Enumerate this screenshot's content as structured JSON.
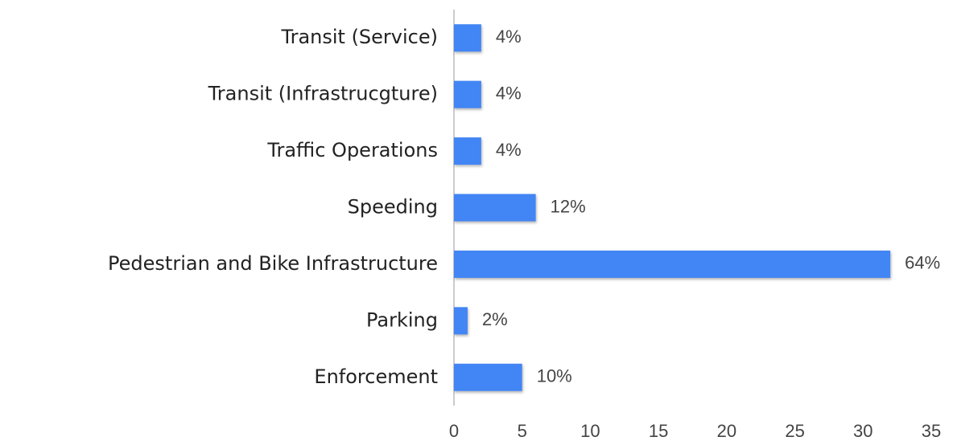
{
  "chart_data": {
    "type": "bar",
    "orientation": "horizontal",
    "categories": [
      "Transit (Service)",
      "Transit (Infrastrucgture)",
      "Traffic Operations",
      "Speeding",
      "Pedestrian and Bike Infrastructure",
      "Parking",
      "Enforcement"
    ],
    "values": [
      2,
      2,
      2,
      6,
      32,
      1,
      5
    ],
    "value_labels": [
      "4%",
      "4%",
      "4%",
      "12%",
      "64%",
      "2%",
      "10%"
    ],
    "color": "#4285f4",
    "xlim": [
      0,
      35
    ],
    "xticks": [
      0,
      5,
      10,
      15,
      20,
      25,
      30,
      35
    ],
    "grid": false
  }
}
